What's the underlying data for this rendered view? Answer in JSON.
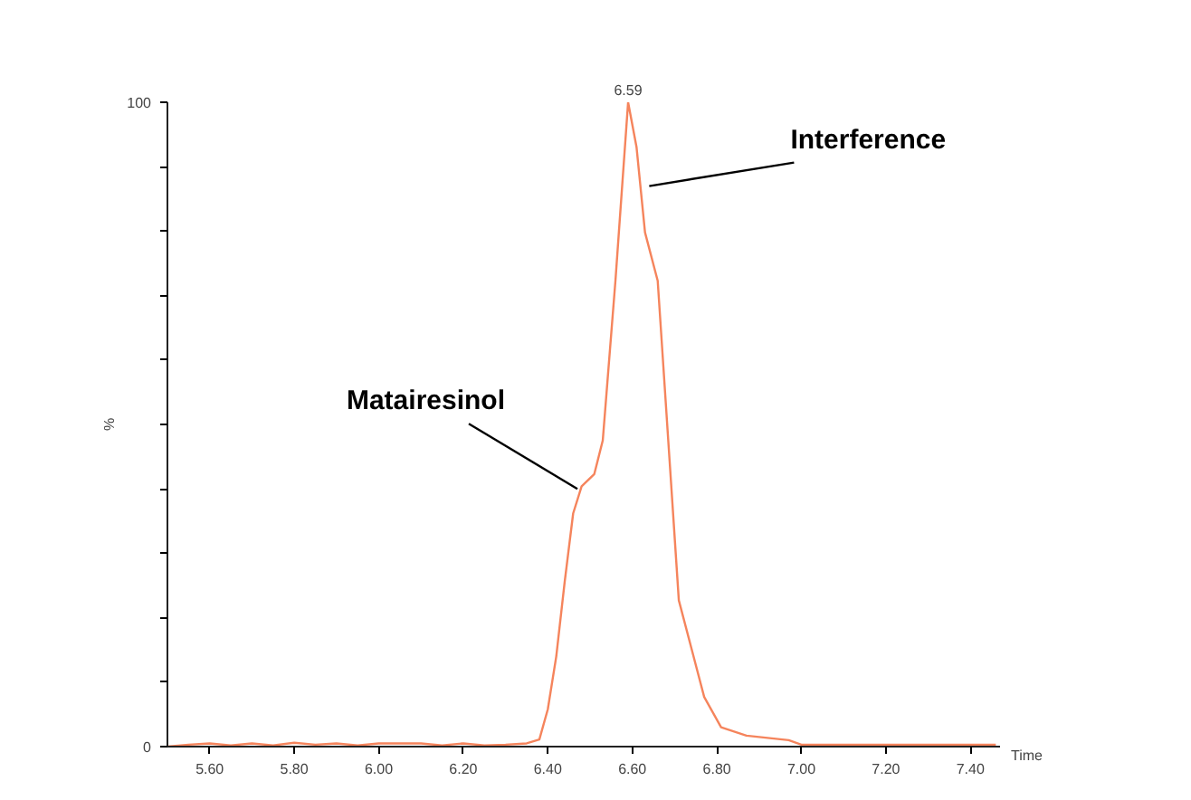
{
  "chart_data": {
    "type": "line",
    "xlabel": "Time",
    "ylabel": "%",
    "x": [
      5.5,
      5.55,
      5.6,
      5.65,
      5.7,
      5.75,
      5.8,
      5.85,
      5.9,
      5.95,
      6.0,
      6.05,
      6.1,
      6.15,
      6.2,
      6.25,
      6.3,
      6.35,
      6.38,
      6.4,
      6.42,
      6.44,
      6.46,
      6.48,
      6.51,
      6.53,
      6.56,
      6.59,
      6.61,
      6.63,
      6.66,
      6.71,
      6.74,
      6.77,
      6.81,
      6.87,
      6.9,
      6.97,
      7.0,
      7.1,
      7.2,
      7.3,
      7.4,
      7.46
    ],
    "series": [
      {
        "color": "#f5845c",
        "values": [
          0,
          0.3,
          0.5,
          0.2,
          0.5,
          0.2,
          0.6,
          0.3,
          0.5,
          0.2,
          0.5,
          0.5,
          0.5,
          0.2,
          0.5,
          0.2,
          0.3,
          0.5,
          1.1,
          5.8,
          14,
          25.6,
          36.2,
          40.4,
          42.3,
          47.5,
          72.3,
          100,
          93,
          79.8,
          72.3,
          22.7,
          15.2,
          7.7,
          3,
          1.7,
          1.5,
          1,
          0.3,
          0.3,
          0.3,
          0.3,
          0.3,
          0.3
        ]
      }
    ],
    "xlim": [
      5.5,
      7.47
    ],
    "ylim": [
      0,
      100
    ],
    "xticks": [
      {
        "value": 5.6,
        "label": "5.60"
      },
      {
        "value": 5.8,
        "label": "5.80"
      },
      {
        "value": 6.0,
        "label": "6.00"
      },
      {
        "value": 6.2,
        "label": "6.20"
      },
      {
        "value": 6.4,
        "label": "6.40"
      },
      {
        "value": 6.6,
        "label": "6.60"
      },
      {
        "value": 6.8,
        "label": "6.80"
      },
      {
        "value": 7.0,
        "label": "7.00"
      },
      {
        "value": 7.2,
        "label": "7.20"
      },
      {
        "value": 7.4,
        "label": "7.40"
      }
    ],
    "yticks": [
      0,
      {
        "value": 10,
        "label": null
      },
      {
        "value": 20,
        "label": null
      },
      {
        "value": 30,
        "label": null
      },
      {
        "value": 40,
        "label": null
      },
      {
        "value": 50,
        "label": null
      },
      {
        "value": 60,
        "label": null
      },
      {
        "value": 70,
        "label": null
      },
      {
        "value": 80,
        "label": null
      },
      {
        "value": 90,
        "label": null
      },
      100
    ],
    "grid": false,
    "marker": "none",
    "line_style": "solid",
    "annotations": [
      {
        "text": "6.59",
        "x": 6.59,
        "y": 100
      },
      {
        "text": "Interference",
        "x": 6.64,
        "y": 87
      },
      {
        "text": "Matairesinol",
        "x": 6.47,
        "y": 40
      }
    ]
  }
}
